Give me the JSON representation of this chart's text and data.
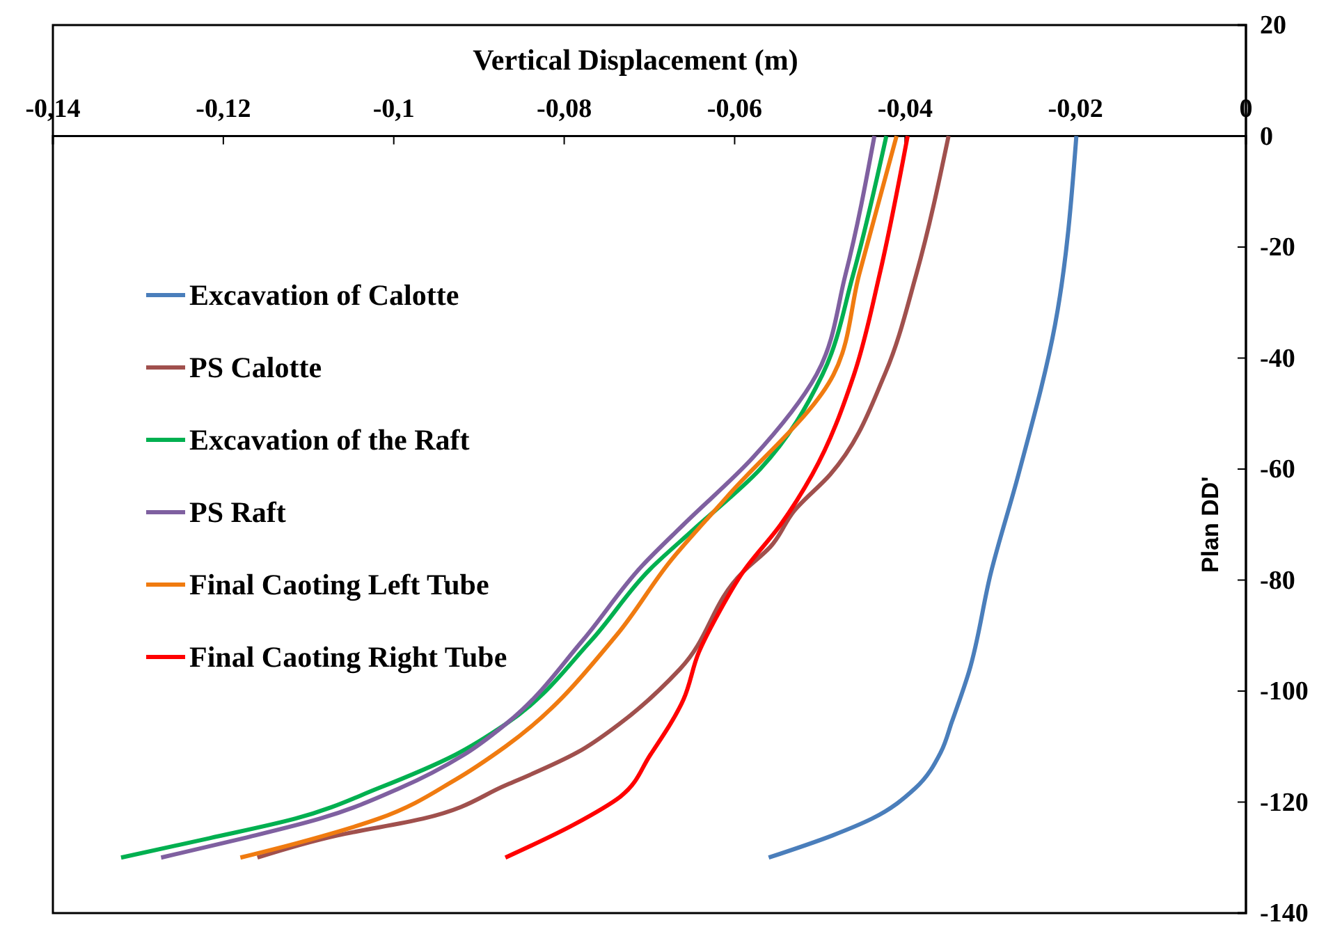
{
  "chart_data": {
    "type": "line",
    "xlabel": "Vertical Displacement (m)",
    "ylabel": "Plan DD'",
    "xlim": [
      -0.14,
      0
    ],
    "xticks": [
      {
        "value": -0.14,
        "label": "-0,14"
      },
      {
        "value": -0.12,
        "label": "-0,12"
      },
      {
        "value": -0.1,
        "label": "-0,1"
      },
      {
        "value": -0.08,
        "label": "-0,08"
      },
      {
        "value": -0.06,
        "label": "-0,06"
      },
      {
        "value": -0.04,
        "label": "-0,04"
      },
      {
        "value": -0.02,
        "label": "-0,02"
      },
      {
        "value": 0,
        "label": "0"
      }
    ],
    "ylim": [
      -140,
      20
    ],
    "yticks": [
      -140,
      -120,
      -100,
      -80,
      -60,
      -40,
      -20,
      0,
      20
    ],
    "legend": "left",
    "grid": false,
    "marker": "none",
    "series": [
      {
        "name": "Excavation of Calotte",
        "color": "#4a7ebb",
        "x": [
          -0.0199,
          -0.0224,
          -0.0267,
          -0.0299,
          -0.0325,
          -0.0345,
          -0.0358,
          -0.0388,
          -0.0439,
          -0.0485,
          -0.056
        ],
        "values": [
          0,
          -34,
          -61,
          -78.5,
          -96.5,
          -105.5,
          -111,
          -117.5,
          -123,
          -126,
          -130
        ]
      },
      {
        "name": "PS Calotte",
        "color": "#a0504d",
        "x": [
          -0.0349,
          -0.0387,
          -0.0424,
          -0.0488,
          -0.053,
          -0.0558,
          -0.059,
          -0.0664,
          -0.0736,
          -0.0784,
          -0.0869,
          -0.0966,
          -0.1066,
          -0.116
        ],
        "values": [
          0,
          -25,
          -43,
          -61,
          -67.5,
          -74,
          -78.5,
          -96,
          -106,
          -111,
          -117,
          -123,
          -126,
          -130
        ]
      },
      {
        "name": "Excavation of the Raft",
        "color": "#00b050",
        "x": [
          -0.0422,
          -0.0461,
          -0.0497,
          -0.057,
          -0.0649,
          -0.0699,
          -0.0769,
          -0.0869,
          -0.0928,
          -0.1018,
          -0.1116,
          -0.1216,
          -0.132
        ],
        "values": [
          0,
          -25,
          -43,
          -60,
          -71,
          -78,
          -91,
          -106,
          -111.5,
          -117.5,
          -123,
          -126.5,
          -130
        ]
      },
      {
        "name": "PS Raft",
        "color": "#7f60a0",
        "x": [
          -0.0436,
          -0.047,
          -0.0504,
          -0.0579,
          -0.066,
          -0.0709,
          -0.0779,
          -0.0869,
          -0.0918,
          -0.0993,
          -0.1087,
          -0.1176,
          -0.1273
        ],
        "values": [
          0,
          -25,
          -43,
          -58,
          -70,
          -77.5,
          -91,
          -106,
          -111.5,
          -117.5,
          -123,
          -126.5,
          -130
        ]
      },
      {
        "name": "Final Caoting Left Tube",
        "color": "#f07b10",
        "x": [
          -0.041,
          -0.0454,
          -0.0484,
          -0.0609,
          -0.0675,
          -0.0739,
          -0.0869,
          -0.0928,
          -0.1018,
          -0.1116,
          -0.118
        ],
        "values": [
          0,
          -25,
          -43,
          -65,
          -76.5,
          -90,
          -110,
          -116,
          -123,
          -127.5,
          -130
        ]
      },
      {
        "name": "Final Caoting Right Tube",
        "color": "#ff0000",
        "x": [
          -0.0397,
          -0.043,
          -0.046,
          -0.0509,
          -0.0546,
          -0.059,
          -0.0619,
          -0.0642,
          -0.066,
          -0.0699,
          -0.0734,
          -0.0788,
          -0.0869
        ],
        "values": [
          0,
          -25,
          -43,
          -61,
          -70,
          -78.5,
          -86,
          -93,
          -101.5,
          -111.5,
          -119,
          -124,
          -130
        ]
      }
    ]
  }
}
